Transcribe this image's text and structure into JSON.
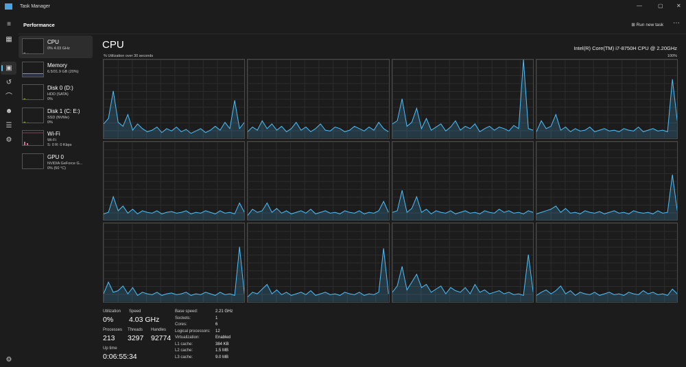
{
  "window": {
    "title": "Task Manager",
    "minimize": "—",
    "maximize": "▢",
    "close": "✕"
  },
  "header": {
    "title": "Performance",
    "run_new_task": "Run new task",
    "more": "···"
  },
  "rail_icons": [
    "hamburger-icon",
    "processes-icon",
    "performance-icon",
    "app-history-icon",
    "startup-apps-icon",
    "users-icon",
    "details-icon",
    "services-icon",
    "settings-icon"
  ],
  "sidebar": [
    {
      "name": "CPU",
      "sub1": "0% 4.03 GHz",
      "sub2": "",
      "color": "#4cc2ff"
    },
    {
      "name": "Memory",
      "sub1": "6.5/31.9 GB (20%)",
      "sub2": "",
      "color": "#6b8cff"
    },
    {
      "name": "Disk 0 (D:)",
      "sub1": "HDD (SATA)",
      "sub2": "0%",
      "color": "#9ccc3a"
    },
    {
      "name": "Disk 1 (C: E:)",
      "sub1": "SSD (NVMe)",
      "sub2": "0%",
      "color": "#9ccc3a"
    },
    {
      "name": "Wi-Fi",
      "sub1": "Wi-Fi",
      "sub2": "S: 0 R: 0 Kbps",
      "color": "#e06890"
    },
    {
      "name": "GPU 0",
      "sub1": "NVIDIA GeForce G...",
      "sub2": "0% (50 °C)",
      "color": "#4cc2ff"
    }
  ],
  "main": {
    "title": "CPU",
    "cpu_name": "Intel(R) Core(TM) i7-8750H CPU @ 2.20GHz",
    "util_label": "% Utilization over 30 seconds",
    "max_label": "100%",
    "graph_color": "#4cc2ff"
  },
  "cores": [
    [
      18,
      25,
      60,
      20,
      15,
      30,
      10,
      18,
      12,
      8,
      10,
      14,
      7,
      12,
      9,
      14,
      8,
      11,
      6,
      9,
      12,
      7,
      10,
      15,
      10,
      20,
      12,
      48,
      12,
      20
    ],
    [
      8,
      14,
      10,
      22,
      12,
      18,
      10,
      15,
      8,
      12,
      20,
      10,
      14,
      8,
      12,
      18,
      10,
      9,
      14,
      12,
      8,
      10,
      15,
      12,
      9,
      14,
      10,
      20,
      12,
      8
    ],
    [
      18,
      22,
      50,
      15,
      20,
      38,
      12,
      25,
      10,
      14,
      18,
      9,
      14,
      22,
      10,
      15,
      12,
      18,
      8,
      12,
      15,
      10,
      14,
      12,
      9,
      16,
      12,
      100,
      12,
      10
    ],
    [
      8,
      22,
      12,
      15,
      30,
      10,
      14,
      8,
      12,
      9,
      10,
      14,
      8,
      10,
      12,
      9,
      10,
      8,
      12,
      10,
      9,
      14,
      8,
      10,
      12,
      9,
      10,
      8,
      75,
      22
    ],
    [
      8,
      10,
      30,
      12,
      18,
      9,
      14,
      8,
      12,
      10,
      9,
      12,
      8,
      10,
      11,
      9,
      10,
      12,
      8,
      10,
      9,
      12,
      10,
      8,
      12,
      9,
      10,
      8,
      22,
      10
    ],
    [
      6,
      14,
      10,
      12,
      22,
      10,
      15,
      9,
      12,
      8,
      10,
      12,
      9,
      14,
      8,
      10,
      12,
      9,
      10,
      8,
      12,
      10,
      9,
      12,
      8,
      10,
      9,
      12,
      24,
      10
    ],
    [
      10,
      12,
      38,
      10,
      15,
      30,
      10,
      14,
      8,
      12,
      10,
      9,
      12,
      8,
      10,
      12,
      9,
      10,
      8,
      12,
      10,
      9,
      14,
      10,
      12,
      9,
      10,
      8,
      12,
      10
    ],
    [
      8,
      10,
      12,
      14,
      18,
      10,
      15,
      9,
      10,
      8,
      12,
      10,
      9,
      11,
      8,
      10,
      12,
      9,
      10,
      8,
      12,
      10,
      9,
      10,
      8,
      12,
      9,
      10,
      58,
      12
    ],
    [
      10,
      25,
      12,
      14,
      20,
      10,
      18,
      8,
      12,
      10,
      9,
      12,
      8,
      10,
      11,
      9,
      10,
      12,
      8,
      10,
      9,
      12,
      10,
      8,
      12,
      9,
      10,
      8,
      70,
      10
    ],
    [
      6,
      12,
      10,
      16,
      22,
      10,
      15,
      9,
      12,
      8,
      10,
      12,
      9,
      14,
      8,
      10,
      12,
      9,
      10,
      8,
      12,
      10,
      9,
      12,
      8,
      10,
      9,
      12,
      68,
      10
    ],
    [
      12,
      20,
      45,
      15,
      25,
      35,
      18,
      22,
      12,
      16,
      20,
      10,
      18,
      14,
      12,
      18,
      10,
      22,
      12,
      15,
      10,
      12,
      14,
      10,
      12,
      9,
      10,
      8,
      60,
      12
    ],
    [
      8,
      12,
      15,
      10,
      14,
      20,
      10,
      14,
      8,
      12,
      10,
      9,
      12,
      8,
      10,
      12,
      9,
      10,
      8,
      12,
      10,
      9,
      14,
      10,
      12,
      9,
      10,
      8,
      16,
      10
    ]
  ],
  "stats": {
    "utilization_label": "Utilization",
    "utilization": "0%",
    "speed_label": "Speed",
    "speed": "4.03 GHz",
    "processes_label": "Processes",
    "processes": "213",
    "threads_label": "Threads",
    "threads": "3297",
    "handles_label": "Handles",
    "handles": "92774",
    "uptime_label": "Up time",
    "uptime": "0:06:55:34"
  },
  "specs": [
    {
      "k": "Base speed:",
      "v": "2.21 GHz"
    },
    {
      "k": "Sockets:",
      "v": "1"
    },
    {
      "k": "Cores:",
      "v": "6"
    },
    {
      "k": "Logical processors:",
      "v": "12"
    },
    {
      "k": "Virtualization:",
      "v": "Enabled"
    },
    {
      "k": "L1 cache:",
      "v": "384 KB"
    },
    {
      "k": "L2 cache:",
      "v": "1.5 MB"
    },
    {
      "k": "L3 cache:",
      "v": "9.0 MB"
    }
  ]
}
